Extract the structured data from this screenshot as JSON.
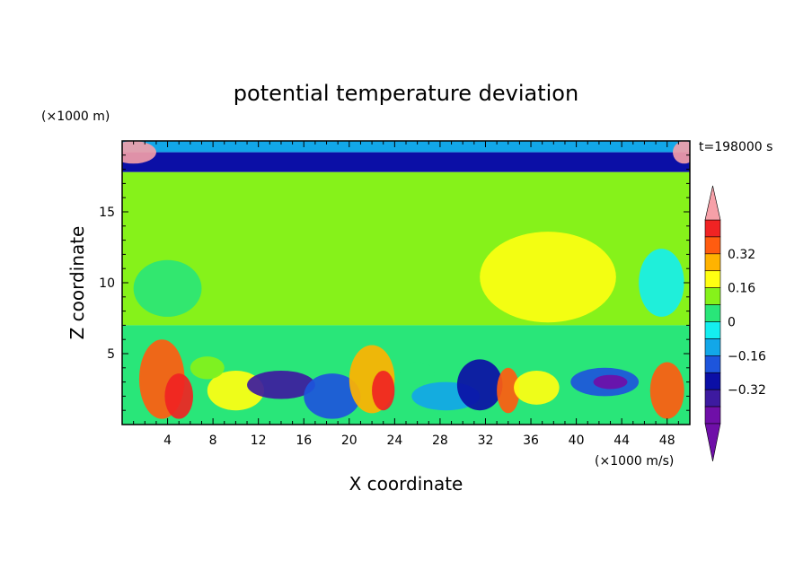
{
  "chart_data": {
    "type": "heatmap",
    "title": "potential temperature deviation",
    "xlabel": "X coordinate",
    "ylabel": "Z coordinate",
    "x_unit": "(×1000 m/s)",
    "y_unit": "(×1000 m)",
    "time_label": "t=198000 s",
    "xlim": [
      0,
      50
    ],
    "ylim": [
      0,
      20
    ],
    "x_ticks": [
      "4",
      "8",
      "12",
      "16",
      "20",
      "24",
      "28",
      "32",
      "36",
      "40",
      "44",
      "48"
    ],
    "y_ticks": [
      "5",
      "10",
      "15"
    ],
    "colorbar": {
      "range": [
        -0.48,
        0.48
      ],
      "labels": [
        "0.32",
        "0.16",
        "0",
        "−0.16",
        "−0.32"
      ],
      "levels": [
        {
          "from": -0.48,
          "to": -0.4,
          "color": "#6f0fa8"
        },
        {
          "from": -0.4,
          "to": -0.32,
          "color": "#3d1aa0"
        },
        {
          "from": -0.32,
          "to": -0.24,
          "color": "#0b0fa6"
        },
        {
          "from": -0.24,
          "to": -0.16,
          "color": "#1d55dc"
        },
        {
          "from": -0.16,
          "to": -0.08,
          "color": "#12a7e8"
        },
        {
          "from": -0.08,
          "to": 0.0,
          "color": "#14eef0"
        },
        {
          "from": 0.0,
          "to": 0.08,
          "color": "#29e679"
        },
        {
          "from": 0.08,
          "to": 0.16,
          "color": "#86f21a"
        },
        {
          "from": 0.16,
          "to": 0.24,
          "color": "#ffff12"
        },
        {
          "from": 0.24,
          "to": 0.32,
          "color": "#ffb300"
        },
        {
          "from": 0.32,
          "to": 0.4,
          "color": "#ff5c10"
        },
        {
          "from": 0.4,
          "to": 0.48,
          "color": "#f02323"
        }
      ],
      "under_color": "#6f0fa8",
      "over_color": "#f6a0a8"
    },
    "regions": [
      {
        "x": [
          0,
          50
        ],
        "z": [
          19.2,
          20
        ],
        "value": -0.1
      },
      {
        "x": [
          0,
          50
        ],
        "z": [
          17.8,
          19.2
        ],
        "value": -0.28
      },
      {
        "x": [
          0,
          50
        ],
        "z": [
          7.0,
          17.8
        ],
        "value": 0.1
      },
      {
        "x": [
          0,
          50
        ],
        "z": [
          0,
          7.0
        ],
        "value": 0.0
      }
    ]
  }
}
